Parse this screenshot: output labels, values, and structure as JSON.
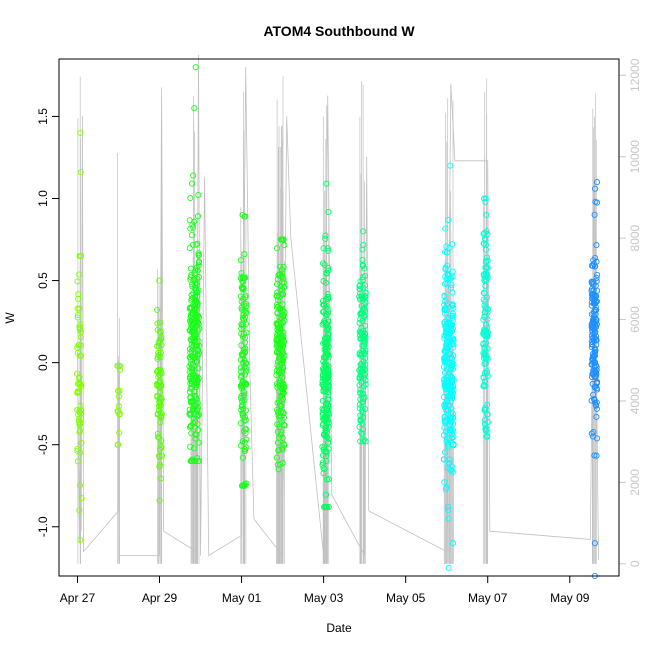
{
  "chart_data": {
    "type": "scatter",
    "title": "ATOM4 Southbound W",
    "xlabel": "Date",
    "ylabel": "W",
    "x_ticks": [
      "Apr 27",
      "Apr 29",
      "May 01",
      "May 03",
      "May 05",
      "May 07",
      "May 09"
    ],
    "x_tick_values": [
      0,
      2,
      4,
      6,
      8,
      10,
      12
    ],
    "xlim": [
      -0.45,
      13.2
    ],
    "ylim": [
      -1.3,
      1.85
    ],
    "y_ticks": [
      -1.0,
      -0.5,
      0.0,
      0.5,
      1.0,
      1.5
    ],
    "y_tick_labels": [
      "-1.0",
      "-0.5",
      "0.0",
      "0.5",
      "1.0",
      "1.5"
    ],
    "y2_lim": [
      -300,
      12400
    ],
    "y2_ticks": [
      0,
      2000,
      4000,
      6000,
      8000,
      10000,
      12000
    ],
    "y2_tick_labels": [
      "0",
      "2000",
      "4000",
      "6000",
      "8000",
      "10000",
      "12000"
    ],
    "y2_color": "#c8c8c8",
    "grid": false,
    "colors": {
      "early": "#7fff00",
      "mid": "#19ff19",
      "later": "#00ff80",
      "late": "#00e6ff",
      "last": "#1e90ff",
      "line": "#c0c0c0"
    },
    "clusters": [
      {
        "x": 0.05,
        "spread": 0.06,
        "n": 55,
        "center": -0.15,
        "sd": 0.32,
        "ymin": -1.08,
        "ymax": 1.4,
        "color": "#7fff00",
        "extra": [
          1.4,
          1.16,
          0.65,
          0.33,
          -0.9,
          -1.08
        ]
      },
      {
        "x": 1.0,
        "spread": 0.04,
        "n": 18,
        "center": -0.25,
        "sd": 0.22,
        "ymin": -0.5,
        "ymax": -0.02,
        "color": "#7fff00",
        "extra": []
      },
      {
        "x": 2.0,
        "spread": 0.06,
        "n": 70,
        "center": -0.2,
        "sd": 0.3,
        "ymin": -0.85,
        "ymax": 0.5,
        "color": "#55ff00",
        "extra": [
          0.5,
          -0.84
        ]
      },
      {
        "x": 2.85,
        "spread": 0.12,
        "n": 240,
        "center": 0.05,
        "sd": 0.35,
        "ymin": -0.6,
        "ymax": 1.8,
        "color": "#19ff19",
        "extra": [
          1.8,
          1.55,
          1.14,
          1.09
        ]
      },
      {
        "x": 4.05,
        "spread": 0.07,
        "n": 120,
        "center": 0.0,
        "sd": 0.35,
        "ymin": -0.75,
        "ymax": 0.9,
        "color": "#19ff19",
        "extra": [
          0.89,
          -0.74
        ]
      },
      {
        "x": 4.95,
        "spread": 0.1,
        "n": 200,
        "center": 0.05,
        "sd": 0.32,
        "ymin": -0.65,
        "ymax": 0.75,
        "color": "#19ff19",
        "extra": [
          -0.62
        ]
      },
      {
        "x": 6.05,
        "spread": 0.08,
        "n": 200,
        "center": -0.05,
        "sd": 0.35,
        "ymin": -0.88,
        "ymax": 1.1,
        "color": "#00ff60",
        "extra": [
          1.09,
          -0.88
        ]
      },
      {
        "x": 6.95,
        "spread": 0.08,
        "n": 140,
        "center": 0.05,
        "sd": 0.3,
        "ymin": -0.48,
        "ymax": 0.8,
        "color": "#00ff80",
        "extra": [
          0.8,
          -0.47
        ]
      },
      {
        "x": 9.05,
        "spread": 0.12,
        "n": 240,
        "center": -0.05,
        "sd": 0.35,
        "ymin": -1.25,
        "ymax": 1.2,
        "color": "#00ffff",
        "extra": [
          1.2,
          -1.25,
          -0.95
        ]
      },
      {
        "x": 9.95,
        "spread": 0.06,
        "n": 110,
        "center": 0.2,
        "sd": 0.35,
        "ymin": -0.45,
        "ymax": 1.0,
        "color": "#00ffd5",
        "extra": [
          0.98,
          0.9
        ]
      },
      {
        "x": 12.6,
        "spread": 0.07,
        "n": 160,
        "center": 0.15,
        "sd": 0.3,
        "ymin": -1.3,
        "ymax": 1.1,
        "color": "#1e90ff",
        "extra": [
          1.06,
          0.98,
          -1.3,
          -1.1
        ]
      }
    ],
    "secondary_line": [
      {
        "x": 0.0,
        "y": 5200
      },
      {
        "x": 0.05,
        "y": 500
      },
      {
        "x": 0.07,
        "y": 7500
      },
      {
        "x": 0.09,
        "y": 800
      },
      {
        "x": 0.12,
        "y": 11000
      },
      {
        "x": 0.15,
        "y": 300
      },
      {
        "x": 1.0,
        "y": 1300
      },
      {
        "x": 1.0,
        "y": 5000
      },
      {
        "x": 1.02,
        "y": 200
      },
      {
        "x": 2.0,
        "y": 200
      },
      {
        "x": 2.05,
        "y": 11700
      },
      {
        "x": 2.1,
        "y": 800
      },
      {
        "x": 2.9,
        "y": 300
      },
      {
        "x": 2.95,
        "y": 12500
      },
      {
        "x": 3.0,
        "y": 200
      },
      {
        "x": 3.1,
        "y": 9500
      },
      {
        "x": 3.2,
        "y": 200
      },
      {
        "x": 4.0,
        "y": 700
      },
      {
        "x": 4.1,
        "y": 12200
      },
      {
        "x": 4.2,
        "y": 4800
      },
      {
        "x": 4.3,
        "y": 1100
      },
      {
        "x": 5.0,
        "y": 200
      },
      {
        "x": 5.1,
        "y": 11000
      },
      {
        "x": 5.2,
        "y": 8000
      },
      {
        "x": 6.0,
        "y": 200
      },
      {
        "x": 6.1,
        "y": 11500
      },
      {
        "x": 6.2,
        "y": 1700
      },
      {
        "x": 7.0,
        "y": 200
      },
      {
        "x": 7.05,
        "y": 10000
      },
      {
        "x": 7.1,
        "y": 1300
      },
      {
        "x": 9.0,
        "y": 300
      },
      {
        "x": 9.1,
        "y": 11800
      },
      {
        "x": 9.2,
        "y": 9900
      },
      {
        "x": 10.0,
        "y": 9900
      },
      {
        "x": 10.05,
        "y": 800
      },
      {
        "x": 12.5,
        "y": 600
      },
      {
        "x": 12.6,
        "y": 9500
      },
      {
        "x": 12.7,
        "y": 100
      }
    ]
  }
}
